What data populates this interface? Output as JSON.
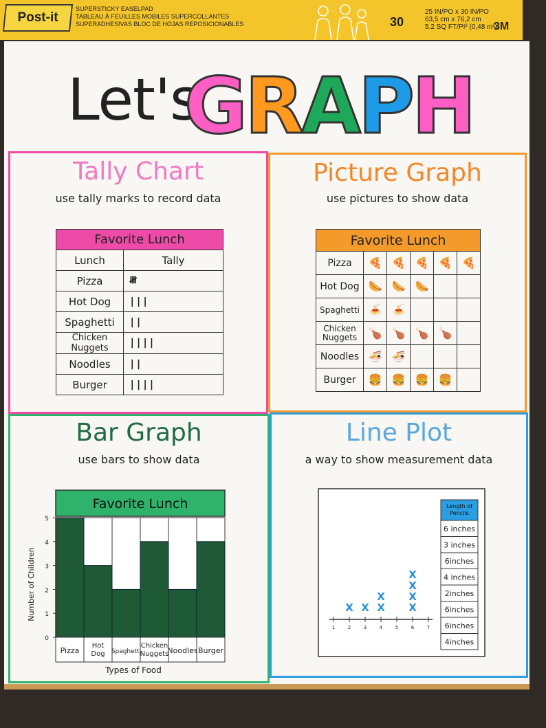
{
  "pad": {
    "brand": "Post-it",
    "lines": [
      "SUPERSTICKY EASELPAD",
      "TABLEAU À FEUILLES MOBILES SUPERCOLLANTES",
      "SUPERADHESIVAS BLOC DE HOJAS REPOSICIONABLES"
    ],
    "count": "30",
    "dims": [
      "25 IN/PO x 30 IN/PO",
      "63,5 cm x 76,2 cm",
      "5.2 SQ FT/PI² (0,48 m²)"
    ],
    "maker": "3M"
  },
  "title": {
    "lets": "Let's",
    "graph_letters": [
      "G",
      "R",
      "A",
      "P",
      "H"
    ],
    "graph_colors": [
      "#ff5fc4",
      "#ff9a1e",
      "#1ea85a",
      "#1e9be6",
      "#ff5fc4"
    ]
  },
  "tally": {
    "title": "Tally Chart",
    "subtitle": "use tally marks to record data",
    "table_title": "Favorite Lunch",
    "col_headers": [
      "Lunch",
      "Tally"
    ],
    "rows": [
      {
        "food": "Pizza",
        "tally": "𝍸"
      },
      {
        "food": "Hot Dog",
        "tally": "|||"
      },
      {
        "food": "Spaghetti",
        "tally": "||"
      },
      {
        "food": "Chicken Nuggets",
        "tally": "||||"
      },
      {
        "food": "Noodles",
        "tally": "||"
      },
      {
        "food": "Burger",
        "tally": "||||"
      }
    ],
    "accent": "#ee4aa8"
  },
  "picture": {
    "title": "Picture Graph",
    "subtitle": "use pictures to show data",
    "table_title": "Favorite Lunch",
    "rows": [
      {
        "food": "Pizza",
        "icons": [
          "🍕",
          "🍕",
          "🍕",
          "🍕",
          "🍕"
        ]
      },
      {
        "food": "Hot Dog",
        "icons": [
          "🌭",
          "🌭",
          "🌭",
          "",
          ""
        ]
      },
      {
        "food": "Spaghetti",
        "icons": [
          "🍝",
          "🍝",
          "",
          "",
          ""
        ]
      },
      {
        "food": "Chicken Nuggets",
        "icons": [
          "🍗",
          "🍗",
          "🍗",
          "🍗",
          ""
        ]
      },
      {
        "food": "Noodles",
        "icons": [
          "🍜",
          "🍜",
          "",
          "",
          ""
        ]
      },
      {
        "food": "Burger",
        "icons": [
          "🍔",
          "🍔",
          "🍔",
          "🍔",
          ""
        ]
      }
    ],
    "accent": "#f39a2a"
  },
  "bar": {
    "title": "Bar Graph",
    "subtitle": "use bars to show data",
    "accent": "#2fb36a"
  },
  "line": {
    "title": "Line Plot",
    "subtitle": "a way to show measurement data",
    "accent": "#2a9ee0",
    "table_title": "Length of Pencils",
    "measurements": [
      "6 inches",
      "3 inches",
      "6inches",
      "4 inches",
      "2inches",
      "6inches",
      "6inches",
      "4inches"
    ]
  },
  "chart_data": [
    {
      "type": "bar",
      "title": "Favorite Lunch",
      "xlabel": "Types of Food",
      "ylabel": "Number of Children",
      "categories": [
        "Pizza",
        "Hot Dog",
        "Spaghetti",
        "Chicken Nuggets",
        "Noodles",
        "Burger"
      ],
      "values": [
        5,
        3,
        2,
        4,
        2,
        4
      ],
      "ylim": [
        0,
        5
      ],
      "yticks": [
        0,
        1,
        2,
        3,
        4,
        5
      ],
      "bar_color": "#1f5a36"
    },
    {
      "type": "scatter",
      "xlim": [
        1,
        7
      ],
      "xticks": [
        1,
        2,
        3,
        4,
        5,
        6,
        7
      ],
      "points": [
        {
          "x": 2,
          "count": 1
        },
        {
          "x": 3,
          "count": 1
        },
        {
          "x": 4,
          "count": 2
        },
        {
          "x": 6,
          "count": 4
        }
      ],
      "marker": "X",
      "marker_color": "#2a8fd8"
    }
  ]
}
